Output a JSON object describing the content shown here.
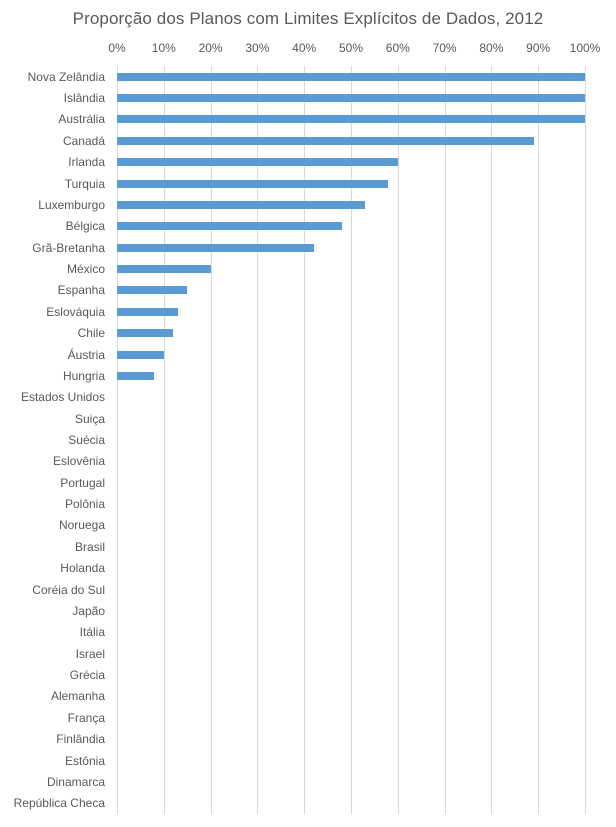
{
  "chart_data": {
    "type": "bar",
    "orientation": "horizontal",
    "title": "Proporção dos Planos com Limites Explícitos de Dados, 2012",
    "xlabel": "",
    "ylabel": "",
    "xlim": [
      0,
      100
    ],
    "x_ticks": [
      "0%",
      "10%",
      "20%",
      "30%",
      "40%",
      "50%",
      "60%",
      "70%",
      "80%",
      "90%",
      "100%"
    ],
    "x_axis_position": "top",
    "grid": "vertical",
    "legend": null,
    "bar_color": "#5b9bd5",
    "categories": [
      "Nova Zelândia",
      "Islândia",
      "Austrália",
      "Canadá",
      "Irlanda",
      "Turquia",
      "Luxemburgo",
      "Bélgica",
      "Grã-Bretanha",
      "México",
      "Espanha",
      "Eslováquia",
      "Chile",
      "Áustria",
      "Hungria",
      "Estados Unidos",
      "Suiça",
      "Suécia",
      "Eslovênia",
      "Portugal",
      "Polônia",
      "Noruega",
      "Brasil",
      "Holanda",
      "Coréia do Sul",
      "Japão",
      "Itália",
      "Israel",
      "Grécia",
      "Alemanha",
      "França",
      "Finlândia",
      "Estônia",
      "Dinamarca",
      "República Checa"
    ],
    "values": [
      100,
      100,
      100,
      89,
      60,
      58,
      53,
      48,
      42,
      20,
      15,
      13,
      12,
      10,
      8,
      0,
      0,
      0,
      0,
      0,
      0,
      0,
      0,
      0,
      0,
      0,
      0,
      0,
      0,
      0,
      0,
      0,
      0,
      0,
      0
    ],
    "unit": "%"
  }
}
